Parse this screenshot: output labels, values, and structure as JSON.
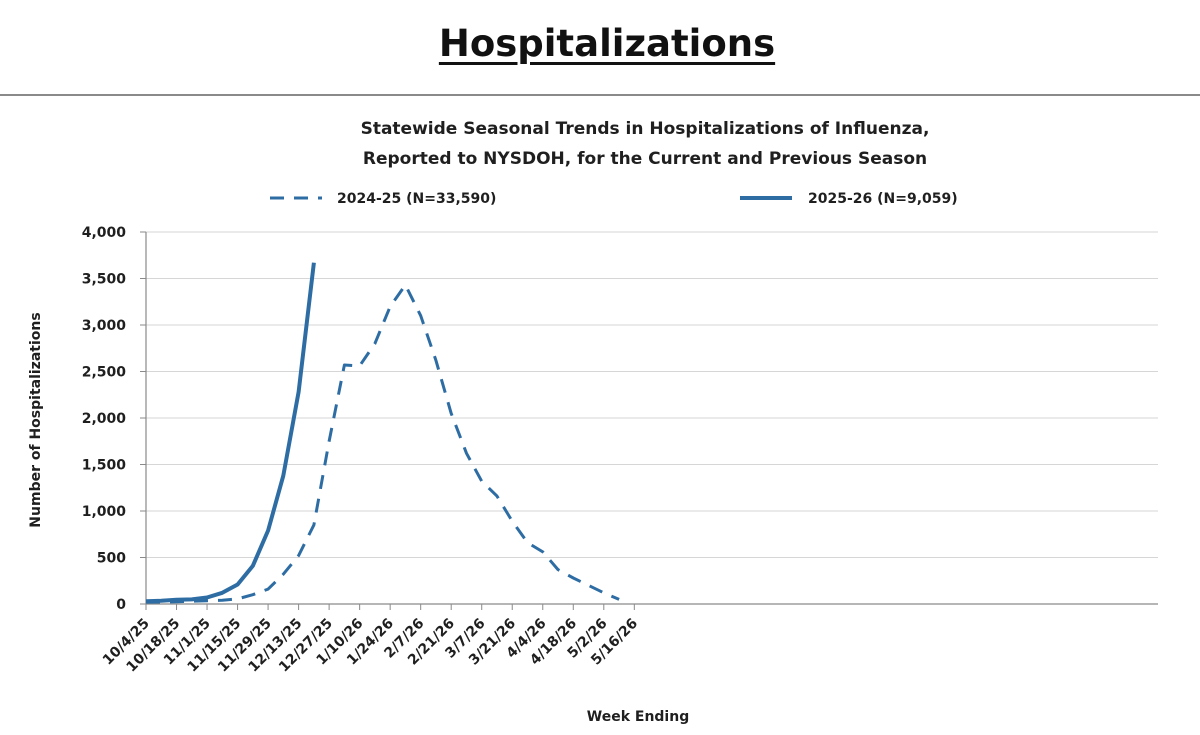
{
  "page": {
    "heading": "Hospitalizations"
  },
  "chart_data": {
    "type": "line",
    "title": "Statewide Seasonal Trends in Hospitalizations of Influenza,",
    "subtitle": "Reported to NYSDOH, for the Current and Previous Season",
    "xlabel": "Week Ending",
    "ylabel": "Number of Hospitalizations",
    "ylim": [
      0,
      4000
    ],
    "y_ticks": [
      "0",
      "500",
      "1,000",
      "1,500",
      "2,000",
      "2,500",
      "3,000",
      "3,500",
      "4,000"
    ],
    "y_tick_values": [
      0,
      500,
      1000,
      1500,
      2000,
      2500,
      3000,
      3500,
      4000
    ],
    "x_tick_labels": [
      "10/4/25",
      "10/18/25",
      "11/1/25",
      "11/15/25",
      "11/29/25",
      "12/13/25",
      "12/27/25",
      "1/10/26",
      "1/24/26",
      "2/7/26",
      "2/21/26",
      "3/7/26",
      "3/21/26",
      "4/4/26",
      "4/18/26",
      "5/2/26",
      "5/16/26"
    ],
    "x_weeks": [
      "10/4/25",
      "10/11/25",
      "10/18/25",
      "10/25/25",
      "11/1/25",
      "11/8/25",
      "11/15/25",
      "11/22/25",
      "11/29/25",
      "12/6/25",
      "12/13/25",
      "12/20/25",
      "12/27/25",
      "1/3/26",
      "1/10/26",
      "1/17/26",
      "1/24/26",
      "1/31/26",
      "2/7/26",
      "2/14/26",
      "2/21/26",
      "2/28/26",
      "3/7/26",
      "3/14/26",
      "3/21/26",
      "3/28/26",
      "4/4/26",
      "4/11/26",
      "4/18/26",
      "4/25/26",
      "5/2/26",
      "5/9/26",
      "5/16/26"
    ],
    "grid": true,
    "legend_position": "top",
    "series": [
      {
        "name": "2024-25 (N=33,590)",
        "style": "dashed",
        "color": "#2e6da4",
        "values": [
          20,
          22,
          25,
          30,
          35,
          40,
          55,
          100,
          160,
          320,
          520,
          850,
          1750,
          2570,
          2560,
          2800,
          3200,
          3430,
          3100,
          2620,
          2050,
          1620,
          1320,
          1160,
          890,
          660,
          560,
          370,
          280,
          200,
          120,
          50,
          null
        ]
      },
      {
        "name": "2025-26 (N=9,059)",
        "style": "solid",
        "color": "#2e6da4",
        "values": [
          30,
          35,
          45,
          50,
          70,
          120,
          210,
          410,
          790,
          1380,
          2280,
          3670,
          null,
          null,
          null,
          null,
          null,
          null,
          null,
          null,
          null,
          null,
          null,
          null,
          null,
          null,
          null,
          null,
          null,
          null,
          null,
          null,
          null
        ]
      }
    ]
  }
}
